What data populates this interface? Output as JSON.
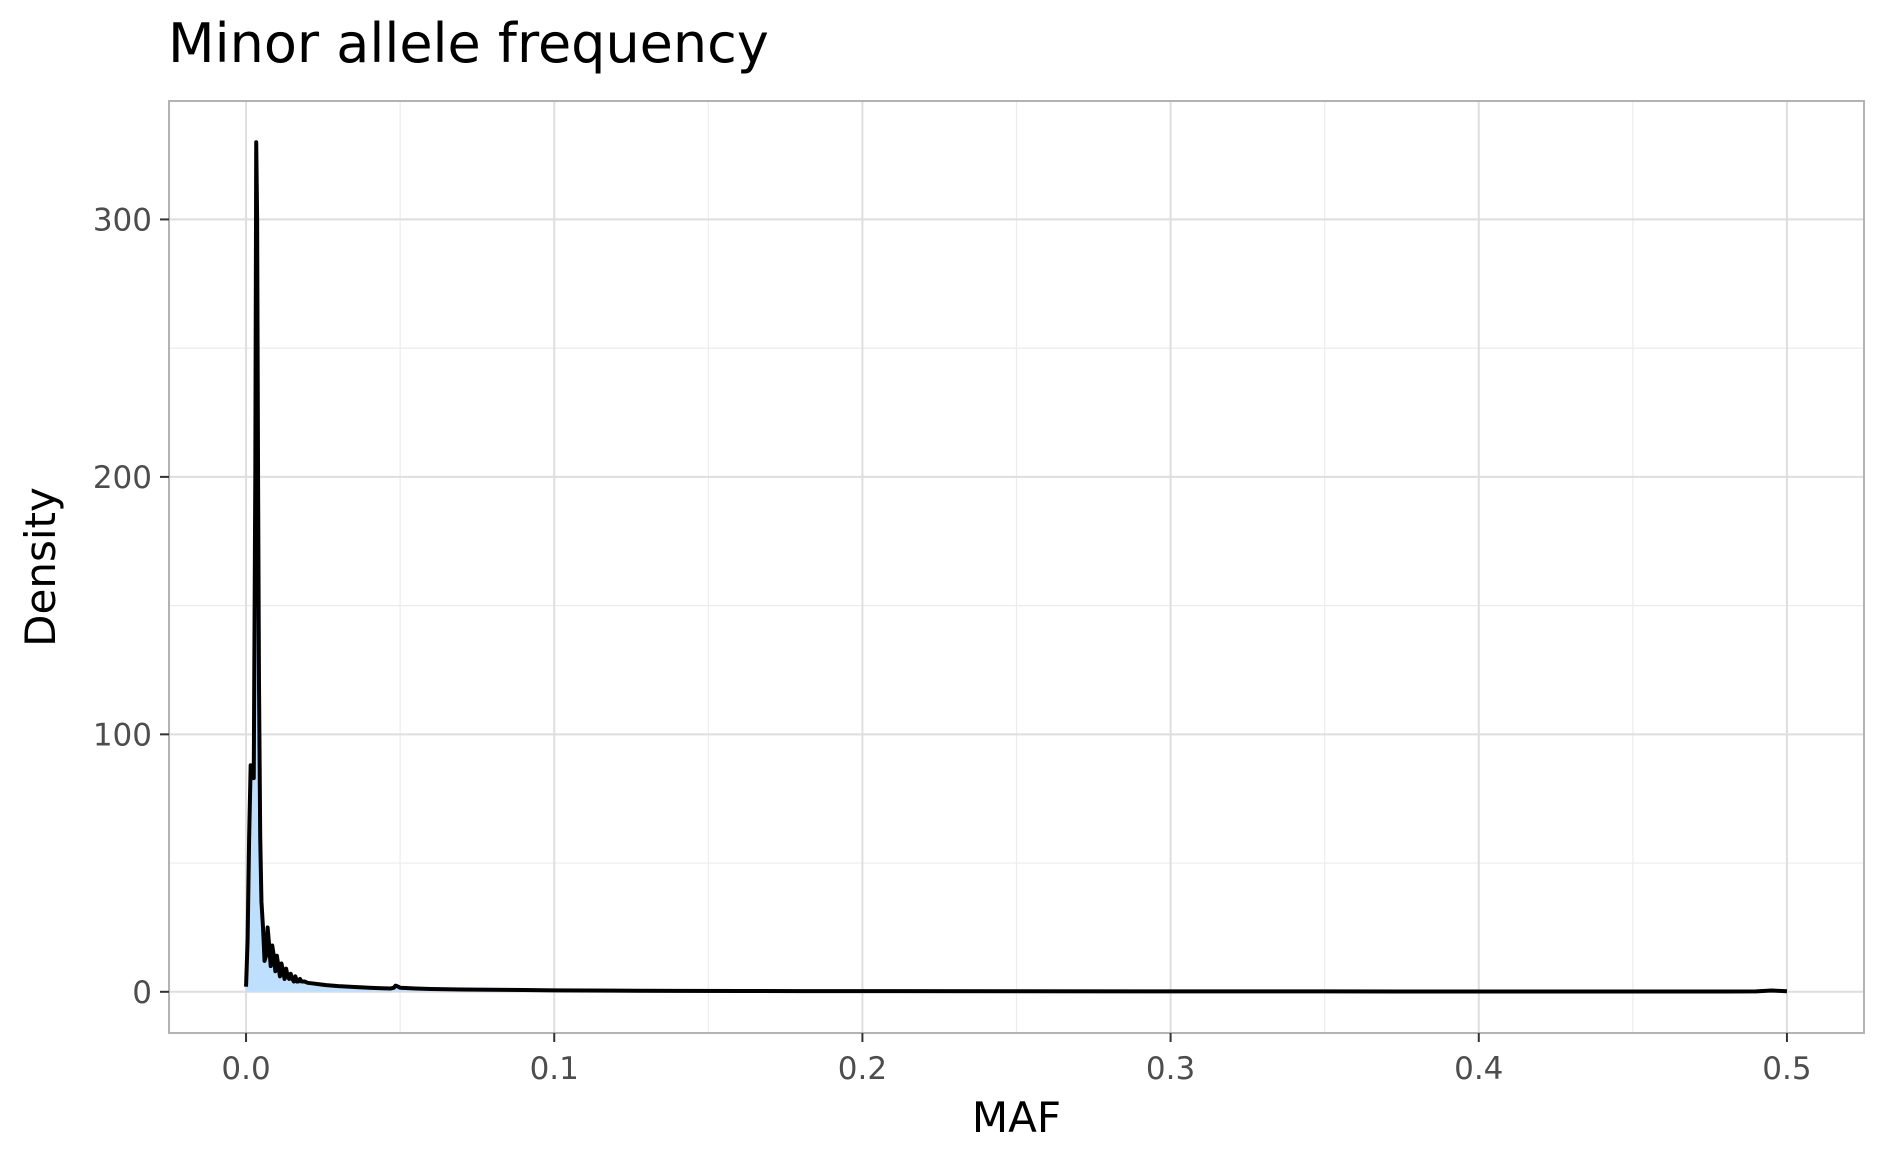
{
  "chart_data": {
    "type": "area",
    "title": "Minor allele frequency",
    "xlabel": "MAF",
    "ylabel": "Density",
    "xlim": [
      -0.025,
      0.525
    ],
    "ylim": [
      -16,
      346
    ],
    "x_ticks": [
      0.0,
      0.1,
      0.2,
      0.3,
      0.4,
      0.5
    ],
    "x_tick_labels": [
      "0.0",
      "0.1",
      "0.2",
      "0.3",
      "0.4",
      "0.5"
    ],
    "y_ticks": [
      0,
      100,
      200,
      300
    ],
    "y_tick_labels": [
      "0",
      "100",
      "200",
      "300"
    ],
    "grid": true,
    "legend": "none",
    "colors": {
      "fill": "#bfdfff",
      "line": "#000000",
      "grid": "#dedede",
      "border": "#b3b3b3"
    },
    "series": [
      {
        "x": [
          0.0,
          0.0005,
          0.001,
          0.0015,
          0.002,
          0.0025,
          0.003,
          0.0033,
          0.0036,
          0.0039,
          0.0042,
          0.0046,
          0.005,
          0.0055,
          0.006,
          0.0065,
          0.007,
          0.0075,
          0.008,
          0.0085,
          0.009,
          0.0095,
          0.01,
          0.0105,
          0.011,
          0.0115,
          0.012,
          0.0125,
          0.013,
          0.0135,
          0.014,
          0.0145,
          0.015,
          0.0155,
          0.016,
          0.0165,
          0.017,
          0.0175,
          0.018,
          0.019,
          0.02,
          0.022,
          0.024,
          0.026,
          0.028,
          0.03,
          0.033,
          0.036,
          0.04,
          0.044,
          0.047,
          0.048,
          0.0485,
          0.049,
          0.05,
          0.055,
          0.06,
          0.07,
          0.08,
          0.09,
          0.1,
          0.12,
          0.14,
          0.16,
          0.18,
          0.2,
          0.25,
          0.3,
          0.35,
          0.4,
          0.45,
          0.48,
          0.49,
          0.495,
          0.4975,
          0.5
        ],
        "y": [
          2,
          20,
          60,
          88,
          85,
          83,
          200,
          330,
          300,
          200,
          120,
          60,
          35,
          25,
          12,
          14,
          25,
          18,
          10,
          18,
          14,
          8,
          14,
          10,
          6,
          11,
          8,
          5,
          9,
          6,
          5,
          7,
          5,
          4,
          6,
          4,
          4,
          5,
          4,
          4,
          3.5,
          3.2,
          2.9,
          2.6,
          2.4,
          2.2,
          2.0,
          1.8,
          1.6,
          1.4,
          1.3,
          1.6,
          2.4,
          2.2,
          1.6,
          1.3,
          1.1,
          0.9,
          0.8,
          0.7,
          0.55,
          0.45,
          0.38,
          0.32,
          0.28,
          0.25,
          0.2,
          0.17,
          0.15,
          0.13,
          0.12,
          0.1,
          0.15,
          0.5,
          0.35,
          0.2
        ]
      }
    ]
  }
}
